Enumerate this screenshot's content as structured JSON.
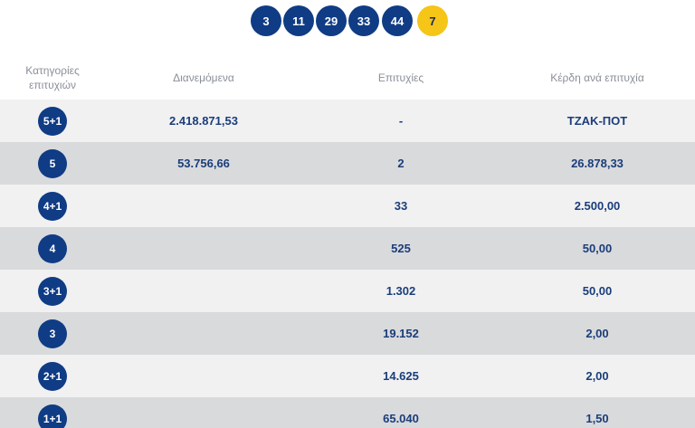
{
  "winning_numbers": [
    "3",
    "11",
    "29",
    "33",
    "44"
  ],
  "bonus_number": "7",
  "table": {
    "headers": {
      "category_line1": "Κατηγορίες",
      "category_line2": "επιτυχιών",
      "distributed": "Διανεμόμενα",
      "winners": "Επιτυχίες",
      "prize": "Κέρδη ανά επιτυχία"
    },
    "rows": [
      {
        "category": "5+1",
        "distributed": "2.418.871,53",
        "winners": "-",
        "prize": "ΤΖΑΚ-ΠΟΤ"
      },
      {
        "category": "5",
        "distributed": "53.756,66",
        "winners": "2",
        "prize": "26.878,33"
      },
      {
        "category": "4+1",
        "distributed": "",
        "winners": "33",
        "prize": "2.500,00"
      },
      {
        "category": "4",
        "distributed": "",
        "winners": "525",
        "prize": "50,00"
      },
      {
        "category": "3+1",
        "distributed": "",
        "winners": "1.302",
        "prize": "50,00"
      },
      {
        "category": "3",
        "distributed": "",
        "winners": "19.152",
        "prize": "2,00"
      },
      {
        "category": "2+1",
        "distributed": "",
        "winners": "14.625",
        "prize": "2,00"
      },
      {
        "category": "1+1",
        "distributed": "",
        "winners": "65.040",
        "prize": "1,50"
      }
    ]
  },
  "colors": {
    "ball_blue": "#0f3c84",
    "ball_yellow": "#f5c518",
    "text_blue": "#1b3d7a",
    "header_gray": "#8a8f99",
    "row_light": "#f1f1f2",
    "row_dark": "#d9dadc"
  }
}
